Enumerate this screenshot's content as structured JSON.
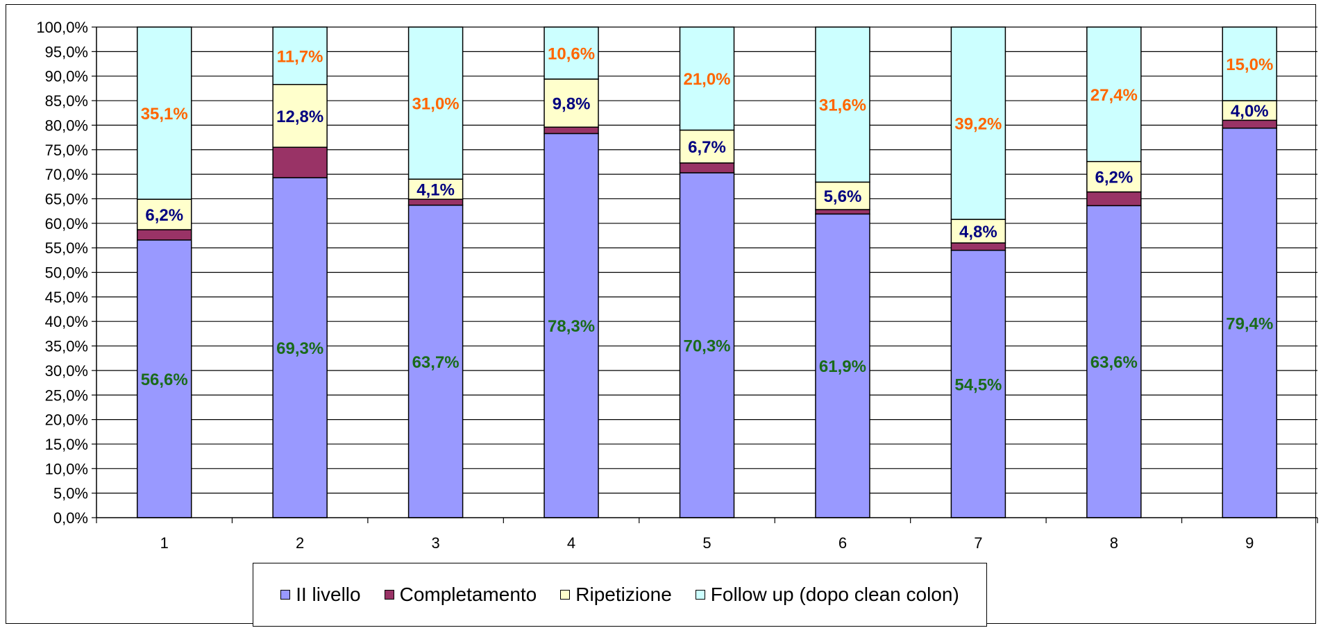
{
  "chart_data": {
    "type": "bar",
    "stacked": true,
    "categories": [
      "1",
      "2",
      "3",
      "4",
      "5",
      "6",
      "7",
      "8",
      "9"
    ],
    "ylim": [
      0,
      100
    ],
    "yticks": [
      "0,0%",
      "5,0%",
      "10,0%",
      "15,0%",
      "20,0%",
      "25,0%",
      "30,0%",
      "35,0%",
      "40,0%",
      "45,0%",
      "50,0%",
      "55,0%",
      "60,0%",
      "65,0%",
      "70,0%",
      "75,0%",
      "80,0%",
      "85,0%",
      "90,0%",
      "95,0%",
      "100,0%"
    ],
    "grid": true,
    "legend_position": "bottom",
    "series": [
      {
        "name": "II livello",
        "color": "#9999FF",
        "label_color": "#1A6B1A",
        "values": [
          56.6,
          69.3,
          63.7,
          78.3,
          70.3,
          61.9,
          54.5,
          63.6,
          79.4
        ],
        "labels": [
          "56,6%",
          "69,3%",
          "63,7%",
          "78,3%",
          "70,3%",
          "61,9%",
          "54,5%",
          "63,6%",
          "79,4%"
        ]
      },
      {
        "name": "Completamento",
        "color": "#993366",
        "values": [
          2.1,
          6.2,
          1.2,
          1.3,
          2.0,
          0.9,
          1.5,
          2.8,
          1.6
        ],
        "labels": [
          "",
          "",
          "",
          "",
          "",
          "",
          "",
          "",
          ""
        ]
      },
      {
        "name": "Ripetizione",
        "color": "#FFFFCC",
        "label_color": "#000080",
        "values": [
          6.2,
          12.8,
          4.1,
          9.8,
          6.7,
          5.6,
          4.8,
          6.2,
          4.0
        ],
        "labels": [
          "6,2%",
          "12,8%",
          "4,1%",
          "9,8%",
          "6,7%",
          "5,6%",
          "4,8%",
          "6,2%",
          "4,0%"
        ]
      },
      {
        "name": "Follow up (dopo clean colon)",
        "color": "#CCFFFF",
        "label_color": "#FF6600",
        "values": [
          35.1,
          11.7,
          31.0,
          10.6,
          21.0,
          31.6,
          39.2,
          27.4,
          15.0
        ],
        "labels": [
          "35,1%",
          "11,7%",
          "31,0%",
          "10,6%",
          "21,0%",
          "31,6%",
          "39,2%",
          "27,4%",
          "15,0%"
        ]
      }
    ]
  }
}
